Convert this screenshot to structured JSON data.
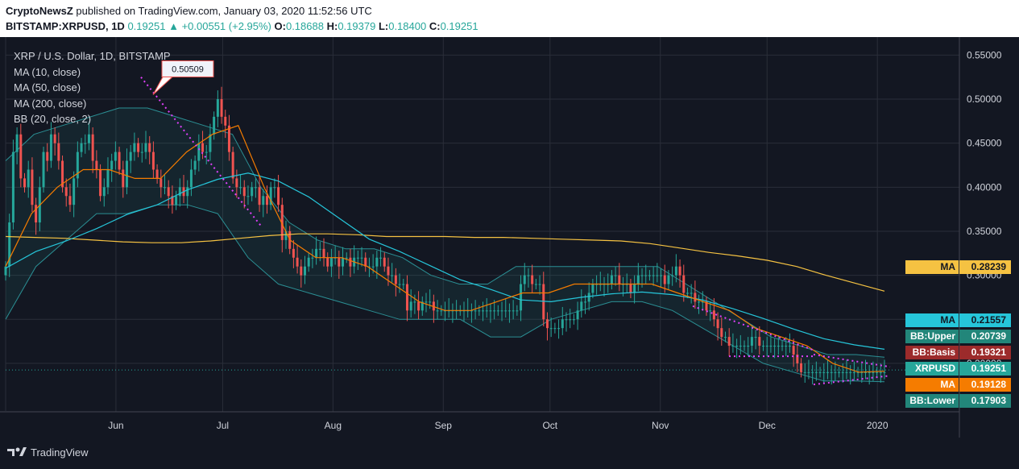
{
  "header": {
    "publisher": "CryptoNewsZ",
    "published_text": "published on TradingView.com, January 03, 2020 11:52:56 UTC",
    "symbol": "BITSTAMP:XRPUSD, 1D",
    "last": "0.19251",
    "change_arrow": "▲",
    "change": "+0.00551 (+2.95%)",
    "o_label": "O:",
    "o_val": "0.18688",
    "h_label": "H:",
    "h_val": "0.19379",
    "l_label": "L:",
    "l_val": "0.18400",
    "c_label": "C:",
    "c_val": "0.19251"
  },
  "legend": {
    "title": "XRP / U.S. Dollar, 1D, BITSTAMP",
    "items": [
      "MA (10, close)",
      "MA (50, close)",
      "MA (200, close)",
      "BB (20, close, 2)"
    ]
  },
  "callout": "0.50509",
  "footer": {
    "brand": "TradingView"
  },
  "price_tags": [
    {
      "name": "MA",
      "value": "0.28239",
      "color": "#f5c242",
      "text": "#131722"
    },
    {
      "name": "MA",
      "value": "0.21557",
      "color": "#26c6da",
      "text": "#131722"
    },
    {
      "name": "BB:Upper",
      "value": "0.20739",
      "color": "#22867a",
      "text": "#ffffff"
    },
    {
      "name": "BB:Basis",
      "value": "0.19321",
      "color": "#9c2b2b",
      "text": "#ffffff"
    },
    {
      "name": "XRPUSD",
      "value": "0.19251",
      "color": "#26a69a",
      "text": "#ffffff"
    },
    {
      "name": "MA",
      "value": "0.19128",
      "color": "#f57c00",
      "text": "#ffffff"
    },
    {
      "name": "BB:Lower",
      "value": "0.17903",
      "color": "#22867a",
      "text": "#ffffff"
    }
  ],
  "chart_data": {
    "type": "candlestick",
    "symbol": "XRP / U.S. Dollar",
    "y_ticks": [
      0.55,
      0.5,
      0.45,
      0.4,
      0.35,
      0.3,
      0.25,
      0.2
    ],
    "y_tick_labels": [
      "0.55000",
      "0.50000",
      "0.45000",
      "0.40000",
      "0.35000",
      "0.30000",
      "0.25000",
      "0.20000"
    ],
    "x_ticks": [
      "Jun",
      "Jul",
      "Aug",
      "Sep",
      "Oct",
      "Nov",
      "Dec",
      "2020"
    ],
    "x_tick_dates": [
      "2019-06-01",
      "2019-07-01",
      "2019-08-01",
      "2019-09-01",
      "2019-10-01",
      "2019-11-01",
      "2019-12-01",
      "2020-01-01"
    ],
    "date_range": [
      "2019-05-01",
      "2020-01-03"
    ],
    "ylim": [
      0.145,
      0.565
    ],
    "close_series": [
      0.31,
      0.36,
      0.44,
      0.46,
      0.41,
      0.4,
      0.42,
      0.38,
      0.36,
      0.4,
      0.44,
      0.43,
      0.46,
      0.45,
      0.43,
      0.4,
      0.39,
      0.38,
      0.41,
      0.44,
      0.45,
      0.45,
      0.46,
      0.43,
      0.42,
      0.39,
      0.4,
      0.42,
      0.43,
      0.44,
      0.42,
      0.4,
      0.43,
      0.44,
      0.45,
      0.44,
      0.44,
      0.45,
      0.44,
      0.42,
      0.41,
      0.4,
      0.4,
      0.39,
      0.38,
      0.39,
      0.4,
      0.39,
      0.4,
      0.42,
      0.43,
      0.45,
      0.44,
      0.44,
      0.46,
      0.48,
      0.5,
      0.48,
      0.47,
      0.44,
      0.41,
      0.4,
      0.4,
      0.39,
      0.39,
      0.4,
      0.4,
      0.38,
      0.39,
      0.38,
      0.4,
      0.4,
      0.38,
      0.34,
      0.35,
      0.33,
      0.32,
      0.31,
      0.3,
      0.31,
      0.32,
      0.32,
      0.33,
      0.33,
      0.32,
      0.31,
      0.32,
      0.32,
      0.31,
      0.32,
      0.32,
      0.31,
      0.32,
      0.32,
      0.32,
      0.31,
      0.31,
      0.31,
      0.32,
      0.32,
      0.31,
      0.3,
      0.3,
      0.29,
      0.29,
      0.29,
      0.26,
      0.27,
      0.27,
      0.26,
      0.27,
      0.27,
      0.27,
      0.26,
      0.26,
      0.26,
      0.26,
      0.26,
      0.26,
      0.26,
      0.26,
      0.26,
      0.26,
      0.26,
      0.26,
      0.26,
      0.26,
      0.26,
      0.26,
      0.26,
      0.26,
      0.26,
      0.26,
      0.26,
      0.26,
      0.26,
      0.29,
      0.3,
      0.3,
      0.29,
      0.29,
      0.29,
      0.25,
      0.24,
      0.24,
      0.24,
      0.24,
      0.25,
      0.25,
      0.25,
      0.25,
      0.26,
      0.27,
      0.27,
      0.28,
      0.29,
      0.29,
      0.29,
      0.29,
      0.29,
      0.3,
      0.3,
      0.29,
      0.29,
      0.29,
      0.28,
      0.29,
      0.3,
      0.3,
      0.3,
      0.3,
      0.3,
      0.3,
      0.3,
      0.29,
      0.3,
      0.3,
      0.31,
      0.3,
      0.28,
      0.28,
      0.28,
      0.27,
      0.27,
      0.27,
      0.26,
      0.26,
      0.25,
      0.24,
      0.23,
      0.23,
      0.22,
      0.22,
      0.22,
      0.22,
      0.22,
      0.22,
      0.23,
      0.23,
      0.22,
      0.22,
      0.22,
      0.22,
      0.22,
      0.22,
      0.22,
      0.22,
      0.22,
      0.21,
      0.2,
      0.19,
      0.19,
      0.19,
      0.19,
      0.19,
      0.19,
      0.19,
      0.19,
      0.19,
      0.19,
      0.19,
      0.19,
      0.19,
      0.19,
      0.19,
      0.19,
      0.19,
      0.19,
      0.19,
      0.19,
      0.19,
      0.19,
      0.19
    ],
    "ma200_series": [
      0.344,
      0.343,
      0.342,
      0.34,
      0.338,
      0.337,
      0.337,
      0.339,
      0.342,
      0.345,
      0.347,
      0.347,
      0.346,
      0.344,
      0.344,
      0.344,
      0.343,
      0.343,
      0.342,
      0.341,
      0.34,
      0.339,
      0.336,
      0.331,
      0.326,
      0.322,
      0.317,
      0.31,
      0.3,
      0.291,
      0.282
    ],
    "ma50_series": [
      0.308,
      0.327,
      0.339,
      0.353,
      0.369,
      0.38,
      0.397,
      0.409,
      0.416,
      0.407,
      0.389,
      0.365,
      0.341,
      0.327,
      0.311,
      0.295,
      0.284,
      0.272,
      0.27,
      0.275,
      0.279,
      0.281,
      0.278,
      0.272,
      0.262,
      0.251,
      0.239,
      0.228,
      0.221,
      0.216
    ],
    "ma10_series": [
      0.31,
      0.37,
      0.4,
      0.42,
      0.42,
      0.41,
      0.41,
      0.44,
      0.46,
      0.47,
      0.4,
      0.34,
      0.32,
      0.32,
      0.31,
      0.29,
      0.27,
      0.26,
      0.26,
      0.27,
      0.28,
      0.28,
      0.29,
      0.29,
      0.29,
      0.29,
      0.28,
      0.27,
      0.26,
      0.24,
      0.23,
      0.22,
      0.2,
      0.19,
      0.191
    ],
    "bb_upper_series": [
      0.43,
      0.46,
      0.47,
      0.48,
      0.49,
      0.49,
      0.48,
      0.47,
      0.46,
      0.4,
      0.36,
      0.34,
      0.33,
      0.33,
      0.32,
      0.3,
      0.29,
      0.29,
      0.31,
      0.31,
      0.31,
      0.31,
      0.31,
      0.31,
      0.29,
      0.27,
      0.25,
      0.23,
      0.22,
      0.21,
      0.21,
      0.207
    ],
    "bb_lower_series": [
      0.25,
      0.31,
      0.34,
      0.37,
      0.37,
      0.38,
      0.38,
      0.37,
      0.32,
      0.29,
      0.28,
      0.27,
      0.26,
      0.25,
      0.25,
      0.25,
      0.23,
      0.23,
      0.25,
      0.26,
      0.27,
      0.27,
      0.26,
      0.24,
      0.22,
      0.2,
      0.19,
      0.18,
      0.18,
      0.179
    ]
  }
}
